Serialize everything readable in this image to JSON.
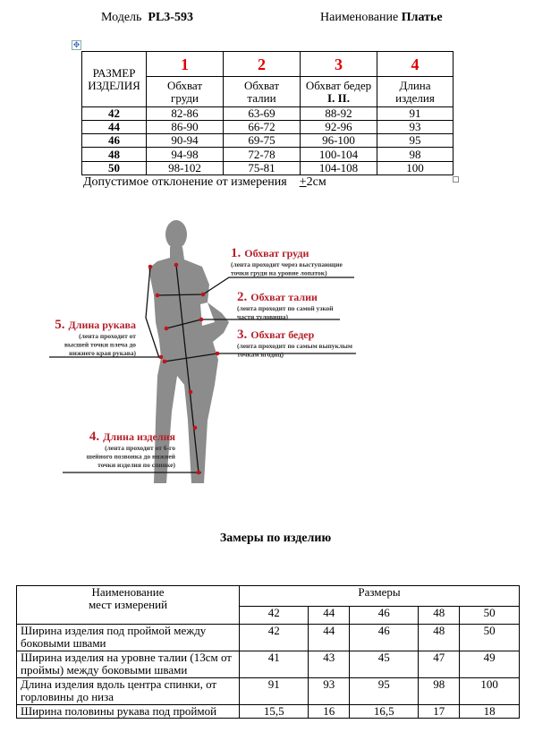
{
  "header": {
    "model_label": "Модель",
    "model_value": "PL3-593",
    "name_label": "Наименование",
    "name_value": "Платье"
  },
  "size_table": {
    "size_header": [
      "РАЗМЕР",
      "ИЗДЕЛИЯ"
    ],
    "numbers": [
      "1",
      "2",
      "3",
      "4"
    ],
    "columns": [
      [
        "Обхват",
        "груди"
      ],
      [
        "Обхват",
        "талии"
      ],
      [
        "Обхват бедер",
        "I. II."
      ],
      [
        "Длина",
        "изделия"
      ]
    ],
    "rows": [
      [
        "42",
        "82-86",
        "63-69",
        "88-92",
        "91"
      ],
      [
        "44",
        "86-90",
        "66-72",
        "92-96",
        "93"
      ],
      [
        "46",
        "90-94",
        "69-75",
        "96-100",
        "95"
      ],
      [
        "48",
        "94-98",
        "72-78",
        "100-104",
        "98"
      ],
      [
        "50",
        "98-102",
        "75-81",
        "104-108",
        "100"
      ]
    ],
    "tolerance": "Допустимое отклонение от измерения",
    "tolerance_value_sign": "+",
    "tolerance_value": "2см"
  },
  "figure": {
    "annotations": [
      {
        "num": "1.",
        "title": "Обхват груди",
        "lines": [
          "(лента проходит через выступающие",
          "точки груди на уровне лопаток)"
        ]
      },
      {
        "num": "2.",
        "title": "Обхват талии",
        "lines": [
          "(лента проходит по самой узкой",
          "части туловища)"
        ]
      },
      {
        "num": "3.",
        "title": "Обхват бедер",
        "lines": [
          "(лента проходит по самым выпуклым",
          "точкам ягодиц)"
        ]
      },
      {
        "num": "4.",
        "title": "Длина изделия",
        "lines": [
          "(лента проходит от 6-го",
          "шейного позвонка до нижней",
          "точки изделия по спинке)"
        ]
      },
      {
        "num": "5.",
        "title": "Длина рукава",
        "lines": [
          "(лента проходит от",
          "высшей точки плеча до",
          "нижнего края рукава)"
        ]
      }
    ],
    "colors": {
      "silhouette": "#8c8c8c",
      "accent": "#b5202a",
      "dot": "#c0141c"
    }
  },
  "measure_title": "Замеры по изделию",
  "measure_table": {
    "name_header": [
      "Наименование",
      "мест измерений"
    ],
    "sizes_header": "Размеры",
    "sizes": [
      "42",
      "44",
      "46",
      "48",
      "50"
    ],
    "rows": [
      {
        "name": [
          "Ширина  изделия  под  проймой между",
          "боковыми швами"
        ],
        "values": [
          "42",
          "44",
          "46",
          "48",
          "50"
        ]
      },
      {
        "name": [
          "Ширина изделия на уровне талии (13см от",
          "проймы)  между боковыми швами"
        ],
        "values": [
          "41",
          "43",
          "45",
          "47",
          "49"
        ]
      },
      {
        "name": [
          "Длина  изделия  вдоль  центра спинки, от",
          "горловины  до низа"
        ],
        "values": [
          "91",
          "93",
          "95",
          "98",
          "100"
        ]
      },
      {
        "name": [
          "Ширина половины рукава под проймой"
        ],
        "values": [
          "15,5",
          "16",
          "16,5",
          "17",
          "18"
        ]
      }
    ]
  }
}
